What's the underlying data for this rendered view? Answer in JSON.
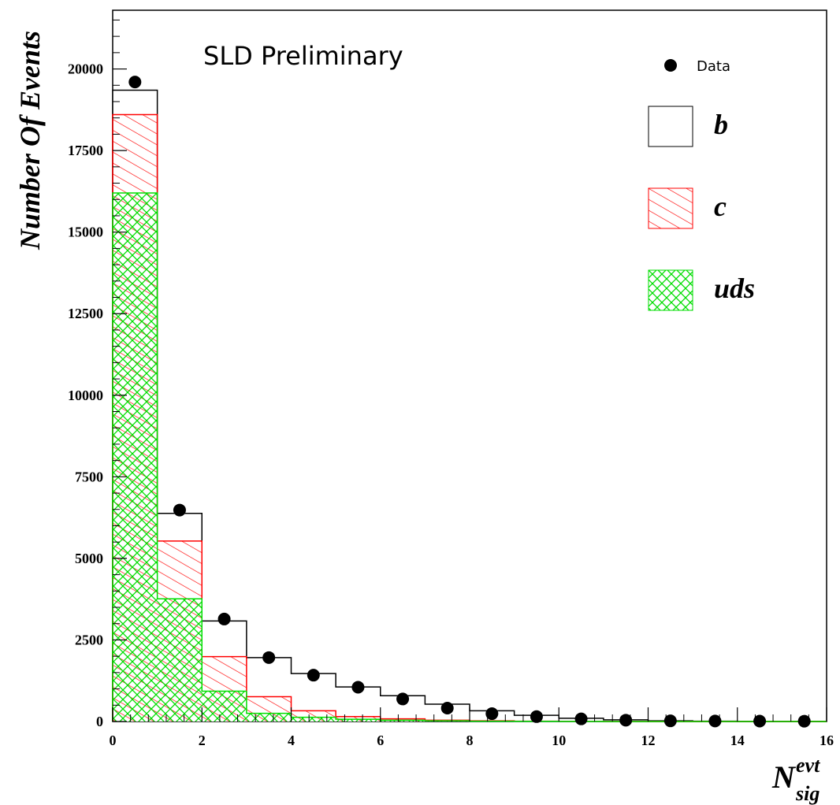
{
  "chart_data": {
    "type": "bar",
    "title": "SLD Preliminary",
    "ylabel": "Number Of Events",
    "xlabel": {
      "main": "N",
      "superscript": "evt",
      "subscript": "sig"
    },
    "xlim": [
      0,
      16
    ],
    "ylim": [
      0,
      21800
    ],
    "x_ticks": [
      0,
      2,
      4,
      6,
      8,
      10,
      12,
      14,
      16
    ],
    "y_ticks": [
      0,
      2500,
      5000,
      7500,
      10000,
      12500,
      15000,
      17500,
      20000
    ],
    "bin_edges": [
      0,
      1,
      2,
      3,
      4,
      5,
      6,
      7,
      8,
      9,
      10,
      11,
      12,
      13,
      14,
      15,
      16
    ],
    "series": [
      {
        "name": "b",
        "style": "open",
        "color": "#000000",
        "values": [
          19350,
          6380,
          3080,
          1960,
          1470,
          1060,
          790,
          530,
          330,
          190,
          100,
          50,
          20,
          8,
          4,
          2
        ]
      },
      {
        "name": "c",
        "style": "hatch-diagonal",
        "color": "#ff0000",
        "values": [
          18600,
          5530,
          1990,
          760,
          330,
          150,
          80,
          40,
          20,
          10,
          5,
          2,
          1,
          0,
          0,
          0
        ]
      },
      {
        "name": "uds",
        "style": "cross-hatch",
        "color": "#00dd00",
        "values": [
          16200,
          3760,
          930,
          250,
          130,
          70,
          40,
          20,
          10,
          5,
          2,
          1,
          0,
          0,
          0,
          0
        ]
      }
    ],
    "data_points": {
      "name": "Data",
      "x": [
        0.5,
        1.5,
        2.5,
        3.5,
        4.5,
        5.5,
        6.5,
        7.5,
        8.5,
        9.5,
        10.5,
        11.5,
        12.5,
        13.5,
        14.5,
        15.5
      ],
      "y": [
        19600,
        6480,
        3140,
        1960,
        1420,
        1050,
        690,
        410,
        240,
        150,
        80,
        40,
        20,
        15,
        12,
        10
      ]
    },
    "legend_placement": "top-right",
    "grid": false
  }
}
